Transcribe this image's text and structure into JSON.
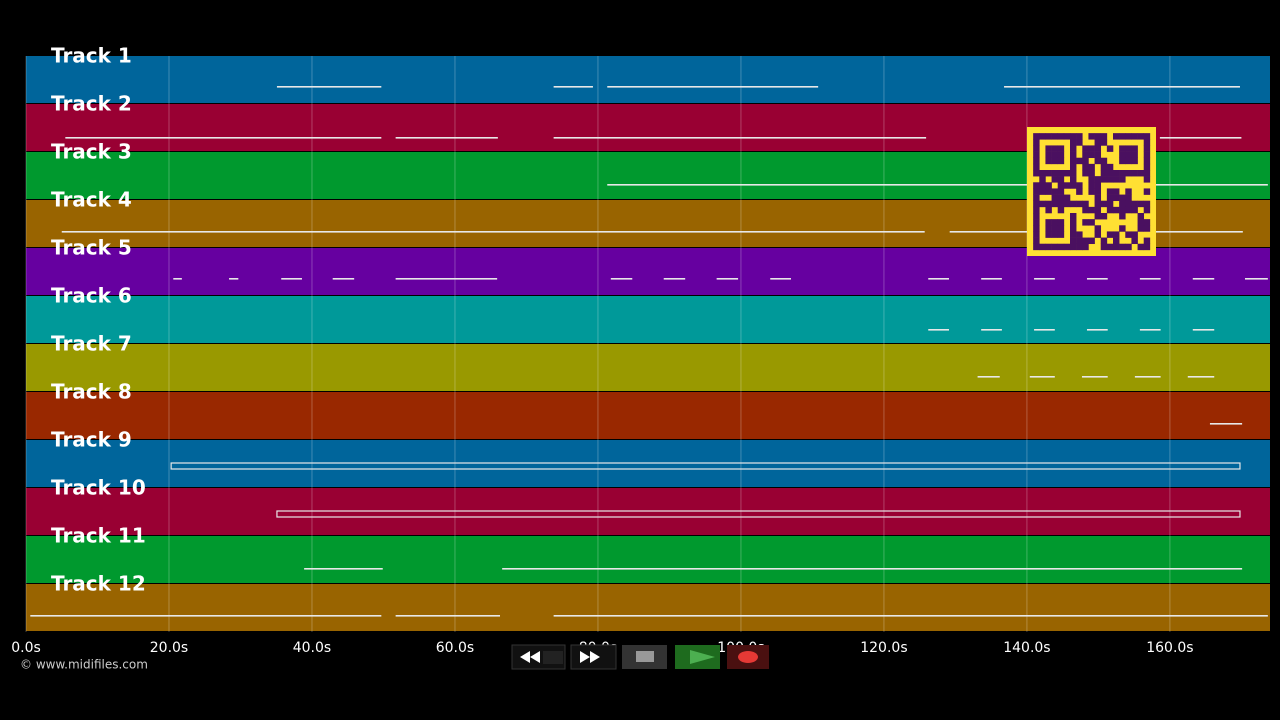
{
  "timeline": {
    "xlim": [
      0,
      174
    ],
    "ticks": [
      {
        "value": 0,
        "label": "0.0s"
      },
      {
        "value": 20,
        "label": "20.0s"
      },
      {
        "value": 40,
        "label": "40.0s"
      },
      {
        "value": 60,
        "label": "60.0s"
      },
      {
        "value": 80,
        "label": "80.0s"
      },
      {
        "value": 100,
        "label": "100.0s"
      },
      {
        "value": 120,
        "label": "120.0s"
      },
      {
        "value": 140,
        "label": "140.0s"
      },
      {
        "value": 160,
        "label": "160.0s"
      }
    ]
  },
  "tracks": [
    {
      "name": "Track 1",
      "color": "#00659b",
      "notes": [
        [
          35.1,
          49.7
        ],
        [
          73.8,
          79.3
        ],
        [
          81.3,
          110.8
        ],
        [
          136.8,
          169.8
        ]
      ]
    },
    {
      "name": "Track 2",
      "color": "#990033",
      "notes": [
        [
          5.5,
          49.7
        ],
        [
          51.7,
          66
        ],
        [
          73.8,
          125.9
        ],
        [
          158.6,
          170
        ]
      ]
    },
    {
      "name": "Track 3",
      "color": "#00992e",
      "notes": [
        [
          81.3,
          173.7
        ]
      ]
    },
    {
      "name": "Track 4",
      "color": "#996400",
      "notes": [
        [
          5,
          125.7
        ],
        [
          129.2,
          170.2
        ]
      ]
    },
    {
      "name": "Track 5",
      "color": "#6600a0",
      "notes": [
        [
          20.6,
          21.8
        ],
        [
          28.4,
          29.7
        ],
        [
          35.7,
          38.6
        ],
        [
          42.9,
          45.9
        ],
        [
          51.7,
          65.9
        ],
        [
          81.8,
          84.8
        ],
        [
          89.2,
          92.2
        ],
        [
          96.6,
          99.6
        ],
        [
          104.1,
          107
        ],
        [
          126.2,
          129.1
        ],
        [
          133.6,
          136.5
        ],
        [
          141,
          143.9
        ],
        [
          148.4,
          151.3
        ],
        [
          155.8,
          158.7
        ],
        [
          163.2,
          166.2
        ],
        [
          170.5,
          173.7
        ]
      ]
    },
    {
      "name": "Track 6",
      "color": "#009999",
      "notes": [
        [
          126.2,
          129.1
        ],
        [
          133.6,
          136.5
        ],
        [
          141,
          143.9
        ],
        [
          148.4,
          151.3
        ],
        [
          155.8,
          158.7
        ],
        [
          163.2,
          166.2
        ]
      ]
    },
    {
      "name": "Track 7",
      "color": "#999900",
      "notes": [
        [
          133.1,
          136.2
        ],
        [
          140.4,
          143.9
        ],
        [
          147.7,
          151.3
        ],
        [
          155.1,
          158.7
        ],
        [
          162.5,
          166.2
        ]
      ]
    },
    {
      "name": "Track 8",
      "color": "#992800",
      "notes": [
        [
          165.6,
          170.1
        ]
      ]
    },
    {
      "name": "Track 9",
      "color": "#00659b",
      "notes": [
        [
          20.3,
          169.8
        ]
      ]
    },
    {
      "name": "Track 10",
      "color": "#990033",
      "notes": [
        [
          35.1,
          169.8
        ]
      ]
    },
    {
      "name": "Track 11",
      "color": "#00992e",
      "notes": [
        [
          38.9,
          49.9
        ],
        [
          66.6,
          170.1
        ]
      ]
    },
    {
      "name": "Track 12",
      "color": "#996400",
      "notes": [
        [
          0.6,
          49.7
        ],
        [
          51.7,
          66.3
        ],
        [
          73.8,
          173.7
        ]
      ]
    }
  ],
  "footer": {
    "credit": "© www.midifiles.com"
  }
}
